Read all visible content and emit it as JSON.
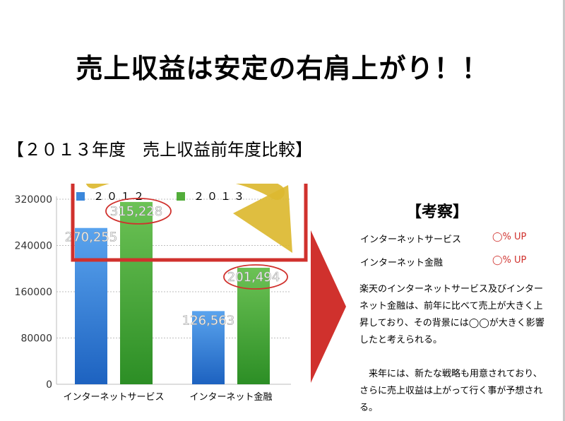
{
  "slide": {
    "title": "売上収益は安定の右肩上がり！！",
    "subtitle": "【２０１３年度　売上収益前年度比較】"
  },
  "chart_data": {
    "type": "bar",
    "categories": [
      "インターネットサービス",
      "インターネット金融"
    ],
    "series": [
      {
        "name": "２０１２",
        "values": [
          270255,
          126563
        ],
        "color": "#3b87db",
        "labels": [
          "270,255",
          "126,563"
        ]
      },
      {
        "name": "２０１３",
        "values": [
          315228,
          201494
        ],
        "color": "#52ad3a",
        "labels": [
          "315,228",
          "201,494"
        ]
      }
    ],
    "ylim": [
      0,
      320000
    ],
    "yticks": [
      "0",
      "80000",
      "160000",
      "240000",
      "320000"
    ],
    "grid": true,
    "legend": "top"
  },
  "insight": {
    "heading": "【考察】",
    "rows": [
      {
        "label": "インターネットサービス",
        "value": "◯%  UP"
      },
      {
        "label": "インターネット金融",
        "value": "◯%  UP"
      }
    ],
    "paragraph1": "楽天のインターネットサービス及びインターネット金融は、前年に比べて売上が大きく上昇しており、その背景には◯◯が大きく影響したと考えられる。",
    "paragraph2": "来年には、新たな戦略も用意されており、さらに売上収益は上がって行く事が予想される。"
  },
  "colors": {
    "highlight_box": "#d0312d",
    "trend_arrow": "#dcb830",
    "circle": "#d0312d",
    "big_arrow": "#d0312d"
  }
}
